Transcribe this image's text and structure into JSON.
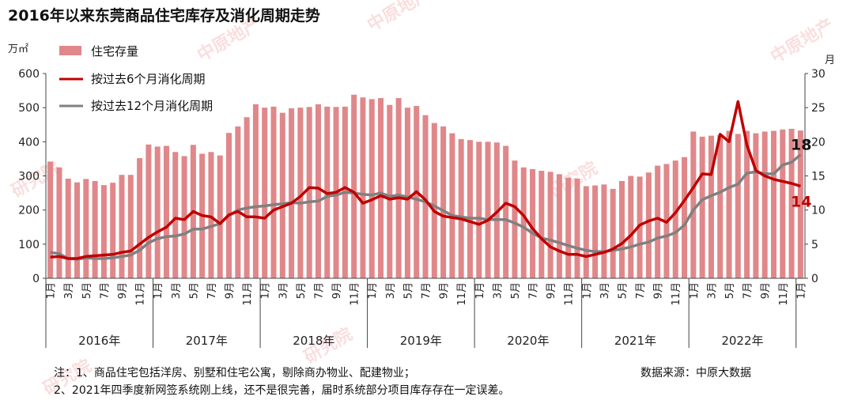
{
  "chart_data": {
    "type": "bar+line",
    "title": "2016年以来东莞商品住宅库存及消化周期走势",
    "y_left_unit": "万㎡",
    "y_right_unit": "月",
    "y_left_range": [
      0,
      600
    ],
    "y_right_range": [
      0,
      30
    ],
    "y_left_ticks": [
      "0",
      "100",
      "200",
      "300",
      "400",
      "500",
      "600"
    ],
    "y_right_ticks": [
      "0",
      "5",
      "10",
      "15",
      "20",
      "25",
      "30"
    ],
    "x_tick_labels": [
      "1月",
      "3月",
      "5月",
      "7月",
      "9月",
      "11月"
    ],
    "years": [
      "2016年",
      "2017年",
      "2018年",
      "2019年",
      "2020年",
      "2021年",
      "2022年"
    ],
    "months_in_last_year": 11,
    "legend": [
      {
        "key": "inventory",
        "label": "住宅存量",
        "color": "#e0878a"
      },
      {
        "key": "cycle6",
        "label": "按过去6个月消化周期",
        "color": "#c00000"
      },
      {
        "key": "cycle12",
        "label": "按过去12个月消化周期",
        "color": "#808080"
      }
    ],
    "series": {
      "inventory": [
        342,
        325,
        292,
        281,
        291,
        285,
        273,
        280,
        303,
        303,
        352,
        392,
        386,
        388,
        370,
        358,
        391,
        365,
        370,
        360,
        426,
        445,
        472,
        510,
        500,
        503,
        485,
        498,
        500,
        502,
        510,
        503,
        502,
        503,
        538,
        530,
        525,
        528,
        508,
        528,
        500,
        505,
        478,
        455,
        445,
        425,
        408,
        405,
        400,
        400,
        398,
        388,
        345,
        325,
        320,
        315,
        312,
        305,
        295,
        292,
        270,
        272,
        275,
        262,
        285,
        300,
        298,
        310,
        330,
        335,
        345,
        355,
        430,
        415,
        418,
        420,
        432,
        423,
        432,
        425,
        430,
        432,
        436,
        438,
        433
      ],
      "cycle6": [
        3.1,
        3.2,
        2.9,
        2.9,
        3.2,
        3.3,
        3.4,
        3.5,
        3.8,
        4.0,
        5.0,
        6.0,
        6.8,
        7.5,
        8.8,
        8.6,
        9.8,
        9.2,
        9.0,
        8.0,
        9.3,
        9.8,
        9.0,
        9.0,
        8.8,
        10.0,
        10.5,
        11.0,
        12.0,
        13.3,
        13.2,
        12.4,
        12.6,
        13.3,
        12.6,
        11.0,
        11.5,
        12.1,
        11.6,
        11.8,
        11.6,
        12.7,
        11.5,
        9.8,
        9.1,
        8.9,
        8.7,
        8.3,
        7.9,
        8.5,
        9.7,
        11.0,
        10.5,
        9.2,
        7.3,
        5.8,
        4.6,
        4.0,
        3.5,
        3.5,
        3.2,
        3.5,
        3.8,
        4.3,
        5.1,
        6.3,
        7.8,
        8.4,
        8.8,
        8.2,
        9.6,
        11.4,
        13.3,
        15.3,
        15.2,
        21.1,
        20.0,
        25.9,
        19.5,
        15.8,
        15.0,
        14.5,
        14.2,
        13.9,
        13.5
      ],
      "cycle12": [
        3.8,
        3.6,
        2.9,
        2.8,
        3.0,
        2.9,
        2.9,
        3.0,
        3.2,
        3.4,
        4.1,
        5.2,
        5.8,
        6.1,
        6.2,
        6.5,
        7.2,
        7.2,
        7.6,
        8.0,
        9.2,
        10.0,
        10.3,
        10.5,
        10.6,
        10.8,
        10.9,
        11.1,
        11.0,
        11.2,
        11.3,
        12.0,
        12.2,
        12.6,
        12.5,
        12.3,
        12.2,
        12.5,
        12.0,
        12.2,
        11.9,
        11.6,
        11.2,
        10.6,
        9.9,
        9.2,
        9.0,
        8.8,
        8.8,
        8.6,
        8.6,
        8.6,
        8.1,
        7.5,
        6.6,
        5.9,
        5.6,
        5.2,
        4.8,
        4.4,
        4.1,
        3.9,
        3.9,
        4.1,
        4.3,
        4.6,
        5.0,
        5.3,
        5.9,
        6.2,
        6.7,
        7.8,
        10.0,
        11.5,
        12.1,
        12.6,
        13.3,
        13.8,
        15.4,
        15.6,
        15.3,
        15.3,
        16.6,
        17.0,
        18.1
      ]
    },
    "end_labels": {
      "cycle12": "18",
      "cycle6": "14"
    }
  },
  "notes": [
    "注：1、商品住宅包括洋房、别墅和住宅公寓，剔除商办物业、配建物业；",
    "2、2021年四季度新网签系统刚上线，还不是很完善，届时系统部分项目库存存在一定误差。"
  ],
  "source": "数据来源：中原大数据",
  "watermarks": [
    "中原地产",
    "研究院",
    "中原地产研究院"
  ]
}
